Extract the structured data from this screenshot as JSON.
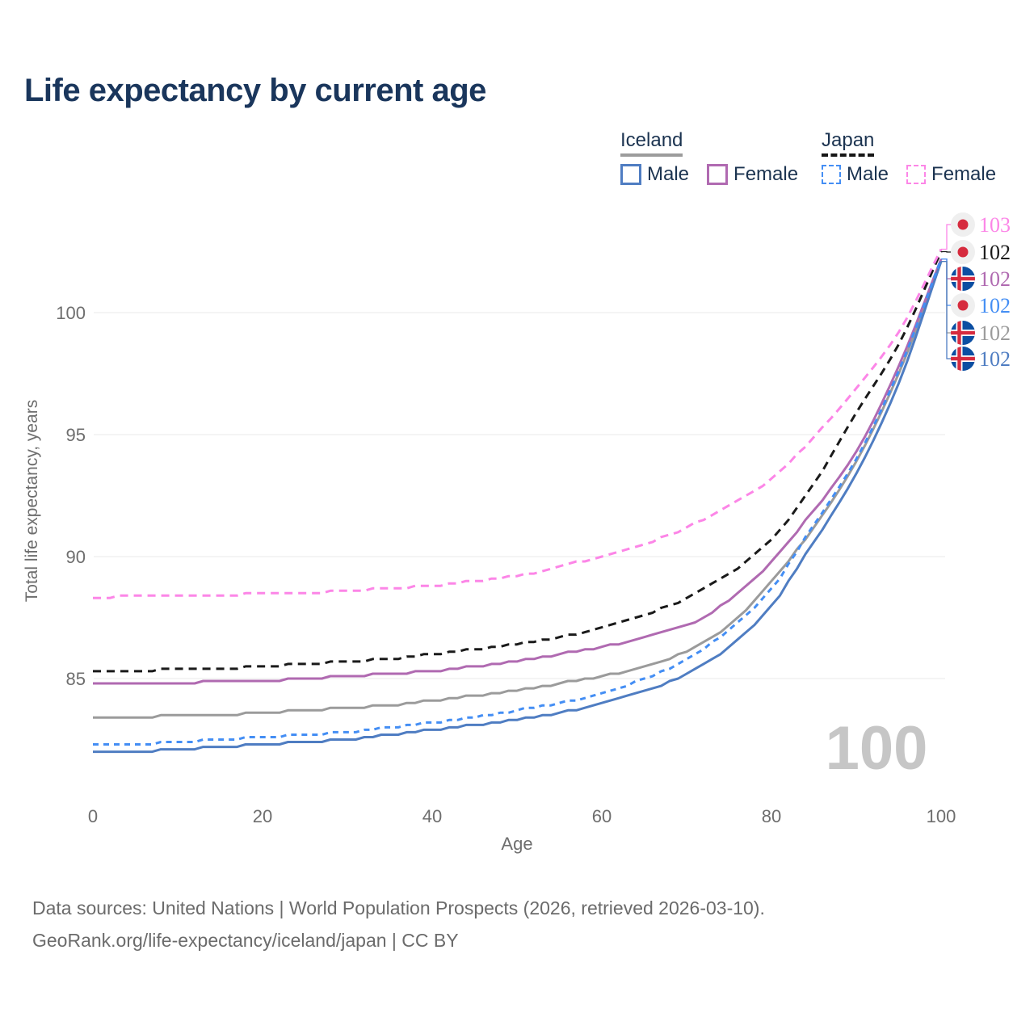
{
  "title": "Life expectancy by current age",
  "legend": {
    "groups": [
      {
        "country": "Iceland",
        "line_style": "solid",
        "underline_color": "#9c9c9c",
        "items": [
          {
            "label": "Male",
            "color": "#4f7dc2",
            "dashed": false
          },
          {
            "label": "Female",
            "color": "#b06ab1",
            "dashed": false
          }
        ]
      },
      {
        "country": "Japan",
        "line_style": "dashed",
        "underline_color": "#161616",
        "items": [
          {
            "label": "Male",
            "color": "#448ef4",
            "dashed": true
          },
          {
            "label": "Female",
            "color": "#fc86e7",
            "dashed": true
          }
        ]
      }
    ]
  },
  "chart_data": {
    "type": "line",
    "title": "Life expectancy by current age",
    "xlabel": "Age",
    "ylabel": "Total life expectancy, years",
    "xlim": [
      0,
      100
    ],
    "ylim": [
      81,
      103.5
    ],
    "xticks": [
      0,
      20,
      40,
      60,
      80,
      100
    ],
    "yticks": [
      85,
      90,
      95,
      100
    ],
    "grid": "horizontal-only",
    "legend_position": "top-right",
    "ages": [
      0,
      5,
      10,
      15,
      20,
      25,
      30,
      35,
      40,
      45,
      50,
      55,
      60,
      65,
      70,
      75,
      80,
      85,
      90,
      95,
      100
    ],
    "series": [
      {
        "name": "Japan Female",
        "country": "Japan",
        "sex": "Female",
        "style": "dashed",
        "color": "#fc86e7",
        "end_label": "103",
        "values": [
          88.3,
          88.4,
          88.4,
          88.4,
          88.5,
          88.5,
          88.6,
          88.7,
          88.8,
          89.0,
          89.2,
          89.6,
          90.0,
          90.5,
          91.2,
          92.1,
          93.2,
          94.9,
          96.9,
          99.2,
          102.6
        ]
      },
      {
        "name": "Japan Both sexes",
        "country": "Japan",
        "sex": "Both",
        "style": "dashed",
        "color": "#1a1a1a",
        "end_label": "102",
        "values": [
          85.3,
          85.3,
          85.4,
          85.4,
          85.5,
          85.6,
          85.7,
          85.8,
          86.0,
          86.2,
          86.4,
          86.7,
          87.1,
          87.6,
          88.3,
          89.3,
          90.7,
          93.0,
          95.9,
          98.7,
          102.5
        ]
      },
      {
        "name": "Iceland Female",
        "country": "Iceland",
        "sex": "Female",
        "style": "solid",
        "color": "#b06ab1",
        "end_label": "102",
        "values": [
          84.8,
          84.8,
          84.8,
          84.9,
          84.9,
          85.0,
          85.1,
          85.2,
          85.3,
          85.5,
          85.7,
          86.0,
          86.3,
          86.7,
          87.2,
          88.2,
          89.8,
          91.9,
          94.3,
          97.8,
          102.2
        ]
      },
      {
        "name": "Japan Male",
        "country": "Japan",
        "sex": "Male",
        "style": "dashed",
        "color": "#448ef4",
        "end_label": "102",
        "values": [
          82.3,
          82.3,
          82.4,
          82.5,
          82.6,
          82.7,
          82.8,
          83.0,
          83.2,
          83.4,
          83.7,
          84.0,
          84.4,
          85.0,
          85.8,
          87.0,
          88.7,
          91.3,
          94.0,
          97.6,
          102.2
        ]
      },
      {
        "name": "Iceland Both sexes",
        "country": "Iceland",
        "sex": "Both",
        "style": "solid",
        "color": "#9b9b9b",
        "end_label": "102",
        "values": [
          83.4,
          83.4,
          83.5,
          83.5,
          83.6,
          83.7,
          83.8,
          83.9,
          84.1,
          84.3,
          84.5,
          84.8,
          85.1,
          85.5,
          86.1,
          87.2,
          89.0,
          91.2,
          93.9,
          97.5,
          102.1
        ]
      },
      {
        "name": "Iceland Male",
        "country": "Iceland",
        "sex": "Male",
        "style": "solid",
        "color": "#4f7dc2",
        "end_label": "102",
        "values": [
          82.0,
          82.0,
          82.1,
          82.2,
          82.3,
          82.4,
          82.5,
          82.7,
          82.9,
          83.1,
          83.3,
          83.6,
          84.0,
          84.5,
          85.2,
          86.3,
          88.0,
          90.6,
          93.4,
          97.1,
          102.1
        ]
      }
    ]
  },
  "annotations": {
    "age_cursor_label": "100"
  },
  "flags": {
    "japan": {
      "bg": "#efefef",
      "dot": "#d62b3e"
    },
    "iceland": {
      "bg": "#0b4ea2",
      "cross_white": "#ffffff",
      "cross_red": "#d72b3f"
    }
  },
  "colors": {
    "title": "#1a365c",
    "legend_text": "#1b3350",
    "axis_text": "#6e6e6e",
    "grid": "#e9e9e9",
    "watermark": "#c6c6c6"
  },
  "footer": {
    "line1": "Data sources: United Nations | World Population Prospects (2026, retrieved 2026-03-10).",
    "line2": "GeoRank.org/life-expectancy/iceland/japan | CC BY"
  }
}
